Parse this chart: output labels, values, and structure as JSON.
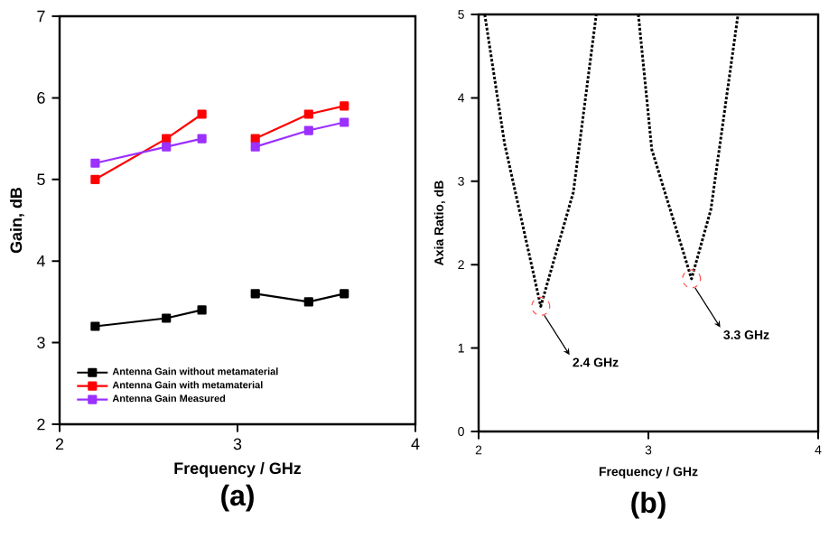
{
  "chart_data": [
    {
      "type": "line",
      "title": "(a)",
      "xlabel": "Frequency / GHz",
      "ylabel": "Gain, dB",
      "xlim": [
        2,
        4
      ],
      "xticks": [
        2,
        3,
        4
      ],
      "ylim": [
        2,
        7
      ],
      "yticks": [
        2,
        3,
        4,
        5,
        6,
        7
      ],
      "marker": "square",
      "legend": "bottom left",
      "x": [
        2.2,
        2.6,
        2.8,
        2.95,
        3.1,
        3.4,
        3.6
      ],
      "series": [
        {
          "name": "Antenna Gain without metamaterial",
          "color": "#000000",
          "values": [
            3.2,
            3.3,
            3.4,
            null,
            3.6,
            3.5,
            3.6
          ]
        },
        {
          "name": "Antenna Gain with metamaterial",
          "color": "#ff0000",
          "values": [
            5.0,
            5.5,
            5.8,
            null,
            5.5,
            5.8,
            5.9
          ]
        },
        {
          "name": "Antenna Gain Measured",
          "color": "#9b30ff",
          "values": [
            5.2,
            5.4,
            5.5,
            null,
            5.4,
            5.6,
            5.7
          ]
        }
      ]
    },
    {
      "type": "line",
      "title": "(b)",
      "xlabel": "Frequency / GHz",
      "ylabel": "Axia Ratio, dB",
      "xlim": [
        2,
        4
      ],
      "xticks": [
        2,
        3,
        4
      ],
      "ylim": [
        0,
        5
      ],
      "yticks": [
        0,
        1,
        2,
        3,
        4,
        5
      ],
      "line_style": "dotted",
      "x": [
        2.036,
        2.153,
        2.366,
        2.558,
        2.693,
        2.82,
        2.941,
        3.02,
        3.254,
        3.368,
        3.528
      ],
      "series": [
        {
          "color": "#000000",
          "values": [
            5,
            3.45,
            1.5,
            2.87,
            5,
            null,
            5,
            3.38,
            1.83,
            2.66,
            5
          ]
        }
      ],
      "annotations": [
        {
          "text": "2.4 GHz",
          "x": 2.366,
          "y": 1.5
        },
        {
          "text": "3.3 GHz",
          "x": 3.254,
          "y": 1.83
        }
      ]
    }
  ]
}
